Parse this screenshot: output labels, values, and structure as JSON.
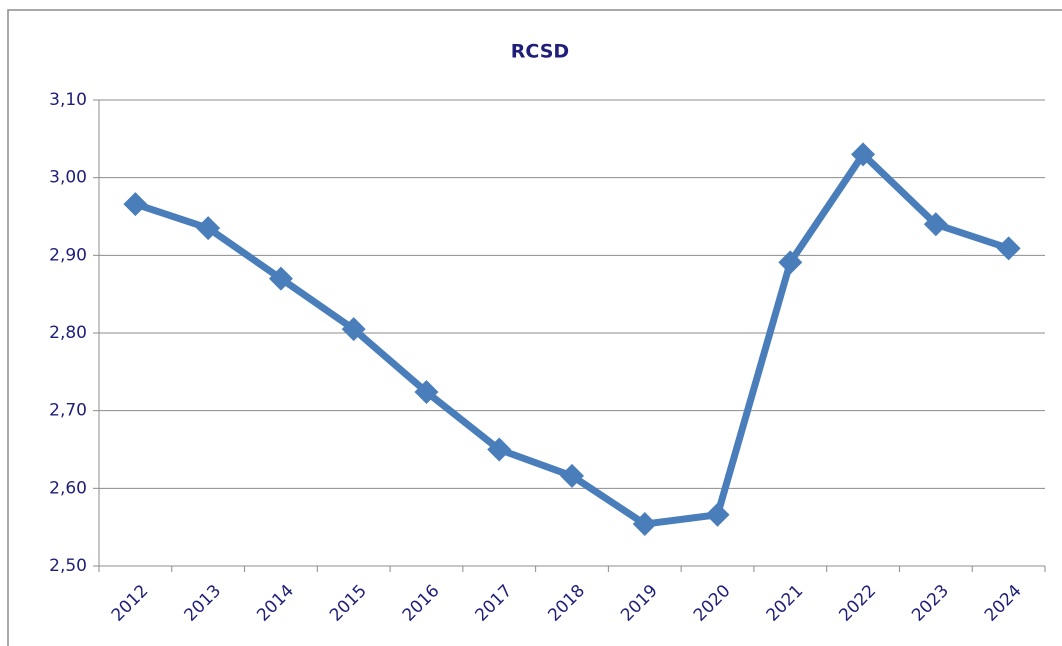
{
  "chart_data": {
    "type": "line",
    "title": "RCSD",
    "categories": [
      "2012",
      "2013",
      "2014",
      "2015",
      "2016",
      "2017",
      "2018",
      "2019",
      "2020",
      "2021",
      "2022",
      "2023",
      "2024"
    ],
    "values": [
      2.966,
      2.935,
      2.87,
      2.805,
      2.724,
      2.65,
      2.616,
      2.554,
      2.566,
      2.891,
      3.03,
      2.94,
      2.909
    ],
    "color": "#4a7ebb",
    "ylim": [
      2.5,
      3.1
    ],
    "yticks": [
      {
        "value": 2.5,
        "label": "2,50"
      },
      {
        "value": 2.6,
        "label": "2,60"
      },
      {
        "value": 2.7,
        "label": "2,70"
      },
      {
        "value": 2.8,
        "label": "2,80"
      },
      {
        "value": 2.9,
        "label": "2,90"
      },
      {
        "value": 3.0,
        "label": "3,00"
      },
      {
        "value": 3.1,
        "label": "3,10"
      }
    ],
    "grid": true
  }
}
